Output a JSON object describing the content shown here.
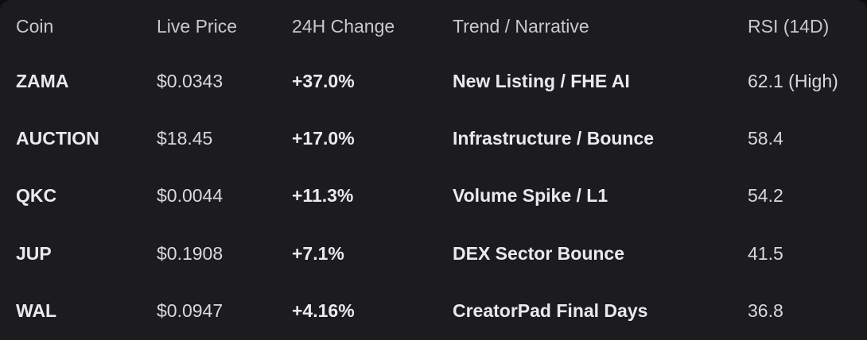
{
  "colors": {
    "page_bg": "#0e0e0f",
    "card_bg": "#1c1c1e",
    "header_text": "#c9c9cb",
    "value_text": "#d9d9db",
    "bold_text": "#eaeaec"
  },
  "table": {
    "columns": {
      "coin": "Coin",
      "price": "Live Price",
      "change": "24H Change",
      "trend": "Trend / Narrative",
      "rsi": "RSI (14D)"
    },
    "rows": [
      {
        "coin": "ZAMA",
        "price": "$0.0343",
        "change": "+37.0%",
        "trend": "New Listing / FHE AI",
        "rsi": "62.1 (High)"
      },
      {
        "coin": "AUCTION",
        "price": "$18.45",
        "change": "+17.0%",
        "trend": "Infrastructure / Bounce",
        "rsi": "58.4"
      },
      {
        "coin": "QKC",
        "price": "$0.0044",
        "change": "+11.3%",
        "trend": "Volume Spike / L1",
        "rsi": "54.2"
      },
      {
        "coin": "JUP",
        "price": "$0.1908",
        "change": "+7.1%",
        "trend": "DEX Sector Bounce",
        "rsi": "41.5"
      },
      {
        "coin": "WAL",
        "price": "$0.0947",
        "change": "+4.16%",
        "trend": "CreatorPad Final Days",
        "rsi": "36.8"
      }
    ]
  }
}
